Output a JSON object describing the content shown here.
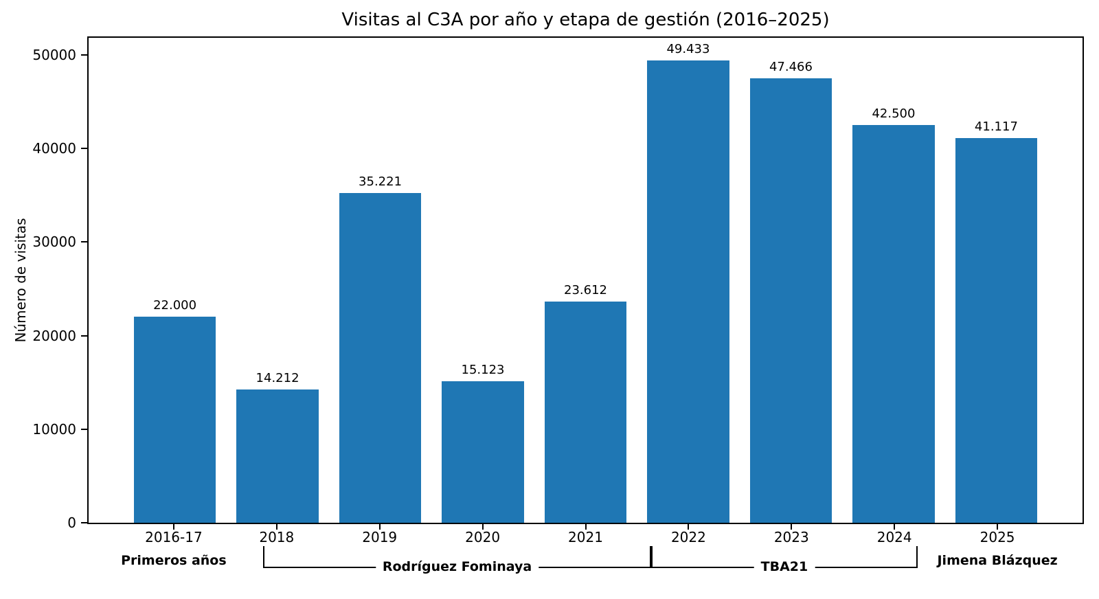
{
  "chart_data": {
    "type": "bar",
    "title": "Visitas al C3A por año y etapa de gestión (2016–2025)",
    "xlabel": "",
    "ylabel": "Número de visitas",
    "categories": [
      "2016-17",
      "2018",
      "2019",
      "2020",
      "2021",
      "2022",
      "2023",
      "2024",
      "2025"
    ],
    "values": [
      22000,
      14212,
      35221,
      15123,
      23612,
      49433,
      47466,
      42500,
      41117
    ],
    "value_labels": [
      "22.000",
      "14.212",
      "35.221",
      "15.123",
      "23.612",
      "49.433",
      "47.466",
      "42.500",
      "41.117"
    ],
    "yticks": [
      0,
      10000,
      20000,
      30000,
      40000,
      50000
    ],
    "ylim": [
      0,
      51825
    ],
    "grid": false,
    "legend": "none",
    "bar_color": "#1f77b4",
    "groups": [
      {
        "label": "Primeros años",
        "start": 0,
        "end": 0,
        "bracket": false
      },
      {
        "label": "Rodríguez Fominaya",
        "start": 1,
        "end": 4,
        "bracket": true
      },
      {
        "label": "TBA21",
        "start": 5,
        "end": 7,
        "bracket": true
      },
      {
        "label": "Jimena Blázquez",
        "start": 8,
        "end": 8,
        "bracket": false
      }
    ]
  }
}
